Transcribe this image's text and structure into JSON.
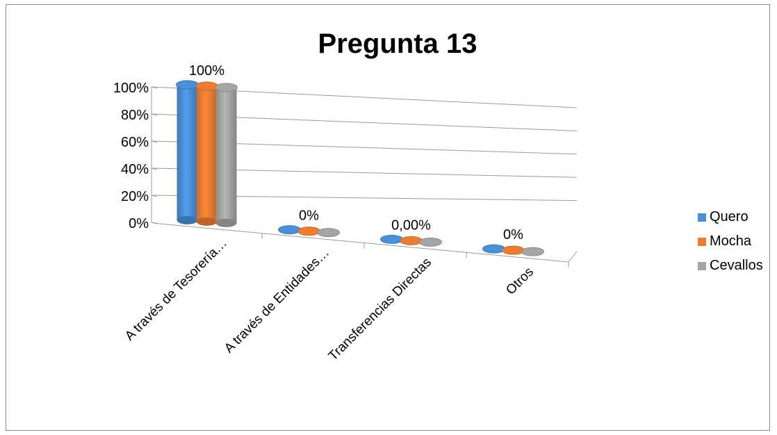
{
  "chart_data": {
    "type": "bar",
    "title": "Pregunta 13",
    "categories": [
      "A través de Tesorería…",
      "A través de Entidades…",
      "Transferencias Directas",
      "Otros"
    ],
    "series": [
      {
        "name": "Quero",
        "color": "#4a90d9",
        "values": [
          100,
          0,
          0,
          0
        ]
      },
      {
        "name": "Mocha",
        "color": "#ed7d31",
        "values": [
          100,
          0,
          0,
          0
        ]
      },
      {
        "name": "Cevallos",
        "color": "#a5a5a5",
        "values": [
          100,
          0,
          0,
          0
        ]
      }
    ],
    "data_labels": [
      "100%",
      "0%",
      "0,00%",
      "0%"
    ],
    "yticks": [
      "0%",
      "20%",
      "40%",
      "60%",
      "80%",
      "100%"
    ],
    "ylim": [
      0,
      100
    ],
    "legend_position": "right",
    "grid": true,
    "style": "3d-cylinder"
  }
}
